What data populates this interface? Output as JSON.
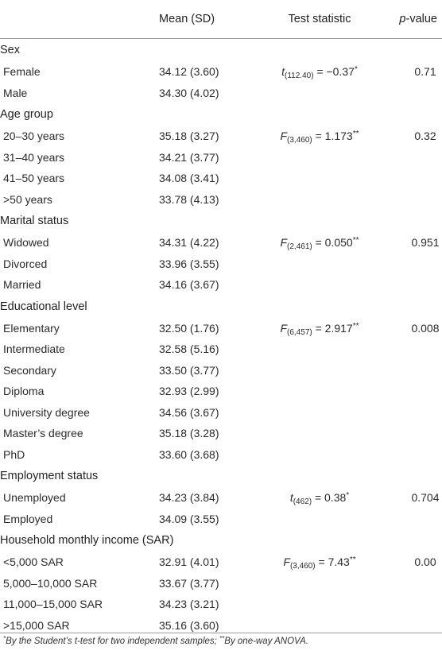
{
  "header": {
    "col1": "",
    "col2": "Mean (SD)",
    "col3": "Test statistic",
    "col4_italic": "p",
    "col4_rest": "-value"
  },
  "sections": [
    {
      "title": "Sex",
      "rows": [
        {
          "label": "Female",
          "mean": "34.12 (3.60)",
          "stat": {
            "sym": "t",
            "sub": "(112.40)",
            "rel": " = −0.37",
            "sup": "*"
          },
          "p": "0.71"
        },
        {
          "label": "Male",
          "mean": "34.30 (4.02)",
          "stat": null,
          "p": ""
        }
      ]
    },
    {
      "title": "Age group",
      "rows": [
        {
          "label": "20–30 years",
          "mean": "35.18 (3.27)",
          "stat": {
            "sym": "F",
            "sub": "(3,460)",
            "rel": " = 1.173",
            "sup": "**"
          },
          "p": "0.32"
        },
        {
          "label": "31–40 years",
          "mean": "34.21 (3.77)",
          "stat": null,
          "p": ""
        },
        {
          "label": "41–50 years",
          "mean": "34.08 (3.41)",
          "stat": null,
          "p": ""
        },
        {
          "label": ">50 years",
          "mean": "33.78 (4.13)",
          "stat": null,
          "p": ""
        }
      ]
    },
    {
      "title": "Marital status",
      "rows": [
        {
          "label": "Widowed",
          "mean": "34.31 (4.22)",
          "stat": {
            "sym": "F",
            "sub": "(2,461)",
            "rel": " = 0.050",
            "sup": "**"
          },
          "p": "0.951"
        },
        {
          "label": "Divorced",
          "mean": "33.96 (3.55)",
          "stat": null,
          "p": ""
        },
        {
          "label": "Married",
          "mean": "34.16 (3.67)",
          "stat": null,
          "p": ""
        }
      ]
    },
    {
      "title": "Educational level",
      "rows": [
        {
          "label": "Elementary",
          "mean": "32.50 (1.76)",
          "stat": {
            "sym": "F",
            "sub": "(6,457)",
            "rel": " = 2.917",
            "sup": "**"
          },
          "p": "0.008"
        },
        {
          "label": "Intermediate",
          "mean": "32.58 (5.16)",
          "stat": null,
          "p": ""
        },
        {
          "label": "Secondary",
          "mean": "33.50 (3.77)",
          "stat": null,
          "p": ""
        },
        {
          "label": "Diploma",
          "mean": "32.93 (2.99)",
          "stat": null,
          "p": ""
        },
        {
          "label": "University degree",
          "mean": "34.56 (3.67)",
          "stat": null,
          "p": ""
        },
        {
          "label": "Master’s degree",
          "mean": "35.18 (3.28)",
          "stat": null,
          "p": ""
        },
        {
          "label": "PhD",
          "mean": "33.60 (3.68)",
          "stat": null,
          "p": ""
        }
      ]
    },
    {
      "title": "Employment status",
      "rows": [
        {
          "label": "Unemployed",
          "mean": "34.23 (3.84)",
          "stat": {
            "sym": "t",
            "sub": "(462)",
            "rel": " = 0.38",
            "sup": "*"
          },
          "p": "0.704"
        },
        {
          "label": "Employed",
          "mean": "34.09 (3.55)",
          "stat": null,
          "p": ""
        }
      ]
    },
    {
      "title": "Household monthly income (SAR)",
      "rows": [
        {
          "label": "<5,000 SAR",
          "mean": "32.91 (4.01)",
          "stat": {
            "sym": "F",
            "sub": "(3,460)",
            "rel": " = 7.43",
            "sup": "**"
          },
          "p": "0.00"
        },
        {
          "label": "5,000–10,000 SAR",
          "mean": "33.67 (3.77)",
          "stat": null,
          "p": ""
        },
        {
          "label": "11,000–15,000 SAR",
          "mean": "34.23 (3.21)",
          "stat": null,
          "p": ""
        },
        {
          "label": ">15,000 SAR",
          "mean": "35.16 (3.60)",
          "stat": null,
          "p": ""
        }
      ]
    }
  ],
  "footnote": {
    "mark1": "*",
    "text1": "By the Student’s t-test for two independent samples; ",
    "mark2": "**",
    "text2": "By one-way ANOVA."
  }
}
